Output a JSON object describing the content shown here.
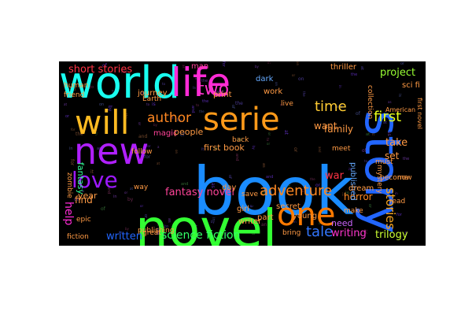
{
  "words": [
    {
      "text": "book",
      "color": "#1a8cff"
    },
    {
      "text": "novel",
      "color": "#33ff33"
    },
    {
      "text": "world",
      "color": "#19fff0"
    },
    {
      "text": "life",
      "color": "#ff2bd6"
    },
    {
      "text": "story",
      "color": "#2266ff"
    },
    {
      "text": "new",
      "color": "#b020ff"
    },
    {
      "text": "will",
      "color": "#ffbb22"
    },
    {
      "text": "serie",
      "color": "#ff9a1a"
    },
    {
      "text": "one",
      "color": "#ff7a00"
    },
    {
      "text": "love",
      "color": "#9d19ff"
    },
    {
      "text": "two",
      "color": "#ff33cc"
    },
    {
      "text": "author",
      "color": "#ff8822"
    },
    {
      "text": "adventure",
      "color": "#ff8822"
    },
    {
      "text": "stories",
      "color": "#f0a020"
    },
    {
      "text": "first",
      "color": "#e8ff1a"
    },
    {
      "text": "time",
      "color": "#ffcc33"
    },
    {
      "text": "tale",
      "color": "#3377ff"
    },
    {
      "text": "help",
      "color": "#ff2bd6"
    },
    {
      "text": "short stories",
      "color": "#ff3344"
    },
    {
      "text": "fantasy novel",
      "color": "#ff4499"
    },
    {
      "text": "science fiction",
      "color": "#33ff66"
    },
    {
      "text": "written",
      "color": "#2266ff"
    },
    {
      "text": "writing",
      "color": "#ff33cc"
    },
    {
      "text": "trilogy",
      "color": "#ccff33"
    },
    {
      "text": "horror",
      "color": "#ff8822"
    },
    {
      "text": "family",
      "color": "#ff9a44"
    },
    {
      "text": "project",
      "color": "#99ff33"
    },
    {
      "text": "war",
      "color": "#ff3344"
    },
    {
      "text": "want",
      "color": "#ff9a44"
    },
    {
      "text": "people",
      "color": "#ff9a44"
    },
    {
      "text": "find",
      "color": "#ff9a44"
    },
    {
      "text": "year",
      "color": "#ff9a44"
    },
    {
      "text": "take",
      "color": "#ff9a44"
    },
    {
      "text": "set",
      "color": "#ff9a44"
    },
    {
      "text": "need",
      "color": "#cc66ff"
    },
    {
      "text": "first book",
      "color": "#ff9a44"
    },
    {
      "text": "fantasy",
      "color": "#33ff99"
    },
    {
      "text": "published",
      "color": "#66aaff"
    },
    {
      "text": "dark",
      "color": "#66aaff"
    },
    {
      "text": "day",
      "color": "#ff9a44"
    },
    {
      "text": "thriller",
      "color": "#ff9a44"
    },
    {
      "text": "sci fi",
      "color": "#ff9a44"
    },
    {
      "text": "secret",
      "color": "#ff9a44"
    },
    {
      "text": "man",
      "color": "#ff4499"
    },
    {
      "text": "journey",
      "color": "#ff9a44"
    },
    {
      "text": "magic",
      "color": "#ff4499"
    },
    {
      "text": "work",
      "color": "#ff9a44"
    },
    {
      "text": "print",
      "color": "#ff9a44"
    },
    {
      "text": "part",
      "color": "#ff9a44"
    },
    {
      "text": "dream",
      "color": "#ff9a44"
    },
    {
      "text": "young",
      "color": "#ff9a44"
    },
    {
      "text": "girl",
      "color": "#ff9a44"
    },
    {
      "text": "fiction",
      "color": "#ff9a44"
    },
    {
      "text": "great",
      "color": "#ff9a44"
    },
    {
      "text": "writer",
      "color": "#ff9a44"
    },
    {
      "text": "bring",
      "color": "#ff9a44"
    },
    {
      "text": "way",
      "color": "#ff9a44"
    },
    {
      "text": "epic",
      "color": "#ff9a44"
    },
    {
      "text": "Earth",
      "color": "#ff9a44"
    },
    {
      "text": "human",
      "color": "#ff9a44"
    },
    {
      "text": "friend",
      "color": "#ff9a44"
    },
    {
      "text": "zombie",
      "color": "#ff9a44"
    },
    {
      "text": "publishing",
      "color": "#ff9a44"
    },
    {
      "text": "follow",
      "color": "#ff9a44"
    },
    {
      "text": "back",
      "color": "#ff9a44"
    },
    {
      "text": "save",
      "color": "#ff9a44"
    },
    {
      "text": "live",
      "color": "#ff9a44"
    },
    {
      "text": "become",
      "color": "#ff9a44"
    },
    {
      "text": "make",
      "color": "#ff9a44"
    },
    {
      "text": "read",
      "color": "#ff9a44"
    },
    {
      "text": "meet",
      "color": "#ff9a44"
    },
    {
      "text": "must",
      "color": "#ff9a44"
    },
    {
      "text": "now",
      "color": "#ff9a44"
    },
    {
      "text": "collection",
      "color": "#ff9a44"
    },
    {
      "text": "mystery",
      "color": "#ff9a44"
    },
    {
      "text": "first novel",
      "color": "#ff9a44"
    },
    {
      "text": "American",
      "color": "#ff9a44"
    }
  ]
}
